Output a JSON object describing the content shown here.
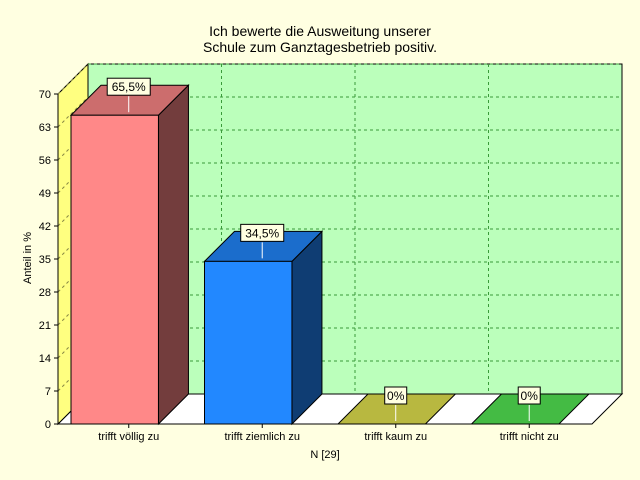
{
  "chart_data": {
    "type": "bar",
    "title": [
      "Ich bewerte die Ausweitung unserer",
      "Schule zum Ganztagesbetrieb positiv."
    ],
    "xlabel": "N [29]",
    "ylabel": "Anteil in %",
    "ylim": [
      0,
      70
    ],
    "yticks": [
      0,
      7,
      14,
      21,
      28,
      35,
      42,
      49,
      56,
      63,
      70
    ],
    "grid": true,
    "categories": [
      "trifft völlig zu",
      "trifft ziemlich zu",
      "trifft kaum zu",
      "trifft nicht zu"
    ],
    "values": [
      65.5,
      34.5,
      0,
      0
    ],
    "value_labels": [
      "65,5%",
      "34,5%",
      "0%",
      "0%"
    ],
    "colors": [
      "#ff8888",
      "#2288ff",
      "#b8b840",
      "#44bb44"
    ],
    "plot_background": "#bbffbb",
    "wall_color": "#ffff80"
  }
}
